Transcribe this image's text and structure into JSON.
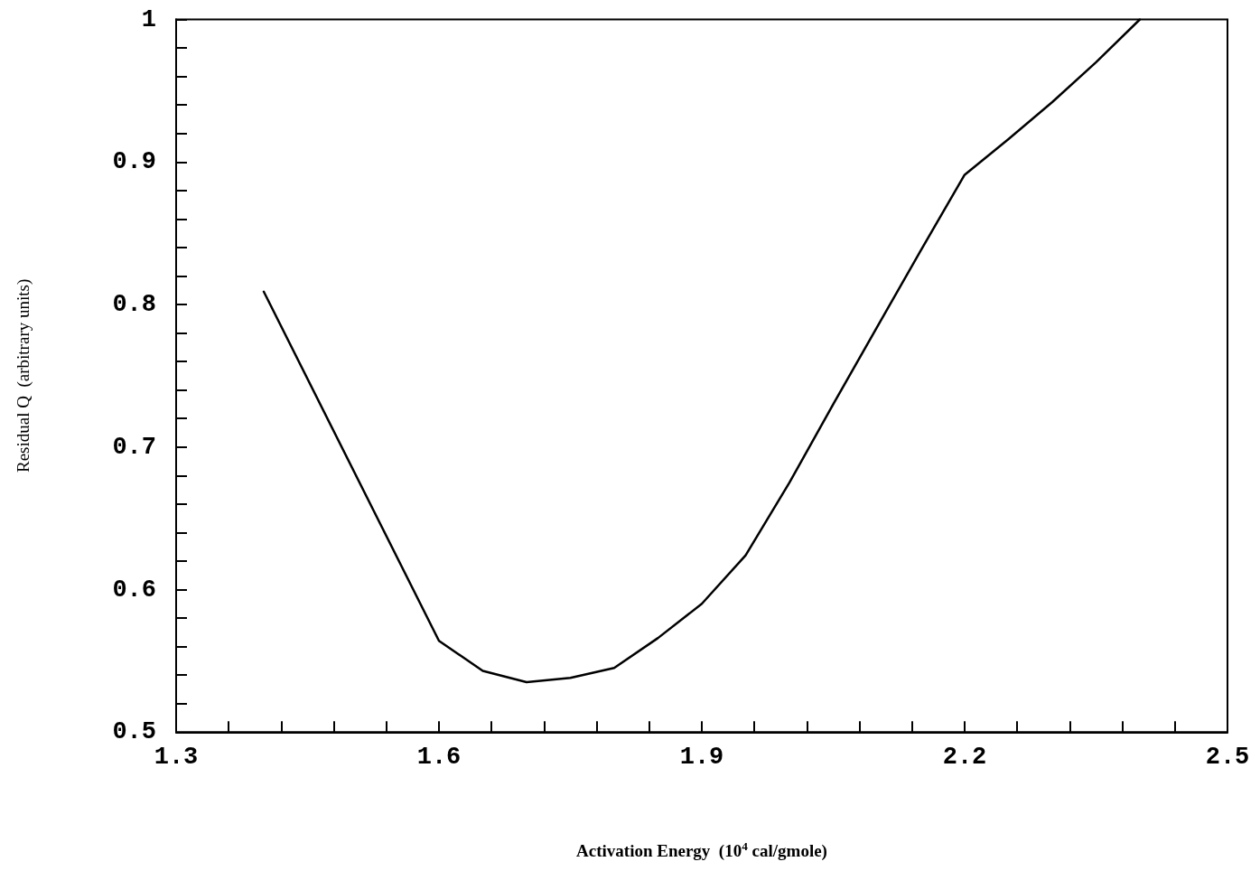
{
  "chart_data": {
    "type": "line",
    "xlabel": "Activation Energy  (10$^{4}$ cal/gmole)",
    "ylabel": "Residual Q  (arbitrary units)",
    "x": [
      1.4,
      1.6,
      1.65,
      1.7,
      1.75,
      1.8,
      1.85,
      1.9,
      1.95,
      2.0,
      2.05,
      2.1,
      2.15,
      2.2,
      2.25,
      2.3,
      2.35,
      2.4
    ],
    "series": [
      {
        "color": "#000000",
        "values": [
          0.809,
          0.564,
          0.543,
          0.535,
          0.538,
          0.545,
          0.566,
          0.59,
          0.624,
          0.675,
          0.73,
          0.784,
          0.838,
          0.891,
          0.916,
          0.942,
          0.97,
          1.0
        ]
      }
    ],
    "xlim": [
      1.3,
      2.5
    ],
    "xticks": [
      1.3,
      {
        "value": 1.36,
        "label": null
      },
      {
        "value": 1.42,
        "label": null
      },
      {
        "value": 1.48,
        "label": null
      },
      {
        "value": 1.54,
        "label": null
      },
      1.6,
      {
        "value": 1.66,
        "label": null
      },
      {
        "value": 1.72,
        "label": null
      },
      {
        "value": 1.78,
        "label": null
      },
      {
        "value": 1.84,
        "label": null
      },
      1.9,
      {
        "value": 1.96,
        "label": null
      },
      {
        "value": 2.02,
        "label": null
      },
      {
        "value": 2.08,
        "label": null
      },
      {
        "value": 2.14,
        "label": null
      },
      2.2,
      {
        "value": 2.26,
        "label": null
      },
      {
        "value": 2.32,
        "label": null
      },
      {
        "value": 2.38,
        "label": null
      },
      {
        "value": 2.44,
        "label": null
      },
      2.5
    ],
    "ylim": [
      0.5,
      1
    ],
    "yticks": [
      0.5,
      {
        "value": 0.52,
        "label": null
      },
      {
        "value": 0.54,
        "label": null
      },
      {
        "value": 0.56,
        "label": null
      },
      {
        "value": 0.58,
        "label": null
      },
      0.6,
      {
        "value": 0.62,
        "label": null
      },
      {
        "value": 0.64,
        "label": null
      },
      {
        "value": 0.66,
        "label": null
      },
      {
        "value": 0.68,
        "label": null
      },
      0.7,
      {
        "value": 0.72,
        "label": null
      },
      {
        "value": 0.74,
        "label": null
      },
      {
        "value": 0.76,
        "label": null
      },
      {
        "value": 0.78,
        "label": null
      },
      0.8,
      {
        "value": 0.82,
        "label": null
      },
      {
        "value": 0.84,
        "label": null
      },
      {
        "value": 0.86,
        "label": null
      },
      {
        "value": 0.88,
        "label": null
      },
      0.9,
      {
        "value": 0.92,
        "label": null
      },
      {
        "value": 0.94,
        "label": null
      },
      {
        "value": 0.96,
        "label": null
      },
      {
        "value": 0.98,
        "label": null
      },
      1
    ],
    "marker": "none",
    "line_style": "solid"
  }
}
